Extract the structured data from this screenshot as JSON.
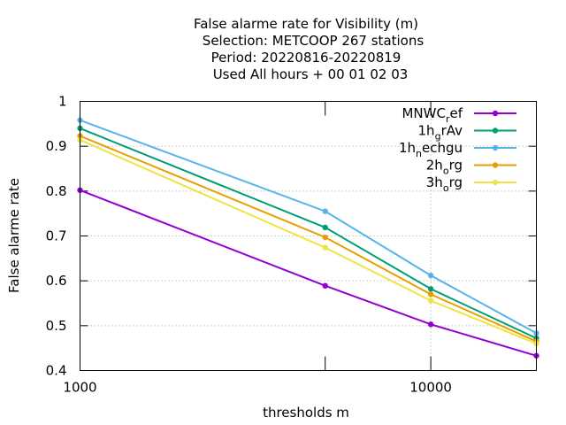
{
  "chart_data": {
    "type": "line",
    "title_lines": [
      "False alarme rate  for Visibility (m)",
      "Selection: METCOOP    267 stations",
      "Period: 20220816-20220819",
      "Used  All hours  + 00 01 02 03"
    ],
    "xlabel": "thresholds m",
    "ylabel": "False alarme rate",
    "x_scale": "log",
    "xlim": [
      1000,
      20000
    ],
    "ylim": [
      0.4,
      1.0
    ],
    "x_ticks": [
      1000,
      10000
    ],
    "x_tick_labels": [
      "1000",
      "10000"
    ],
    "x_minor_ticks": [
      5000
    ],
    "y_ticks": [
      0.4,
      0.5,
      0.6,
      0.7,
      0.8,
      0.9,
      1.0
    ],
    "y_tick_labels": [
      "0.4",
      "0.5",
      "0.6",
      "0.7",
      "0.8",
      "0.9",
      "1"
    ],
    "grid": true,
    "legend_position": "top-right",
    "x": [
      1000,
      5000,
      10000,
      20000
    ],
    "series": [
      {
        "name_main": "MNWC",
        "name_sub": "r",
        "name_rest": "ef",
        "color": "#9400d3",
        "values": [
          0.802,
          0.589,
          0.503,
          0.433
        ]
      },
      {
        "name_main": "1h",
        "name_sub": "g",
        "name_rest": "rAv",
        "color": "#009e73",
        "values": [
          0.94,
          0.719,
          0.582,
          0.472
        ]
      },
      {
        "name_main": "1h",
        "name_sub": "n",
        "name_rest": "echgu",
        "color": "#56b4e9",
        "values": [
          0.958,
          0.755,
          0.612,
          0.483
        ]
      },
      {
        "name_main": "2h",
        "name_sub": "o",
        "name_rest": "rg",
        "color": "#e69f00",
        "values": [
          0.923,
          0.697,
          0.57,
          0.465
        ]
      },
      {
        "name_main": "3h",
        "name_sub": "o",
        "name_rest": "rg",
        "color": "#f0e442",
        "values": [
          0.914,
          0.674,
          0.556,
          0.46
        ]
      }
    ]
  }
}
